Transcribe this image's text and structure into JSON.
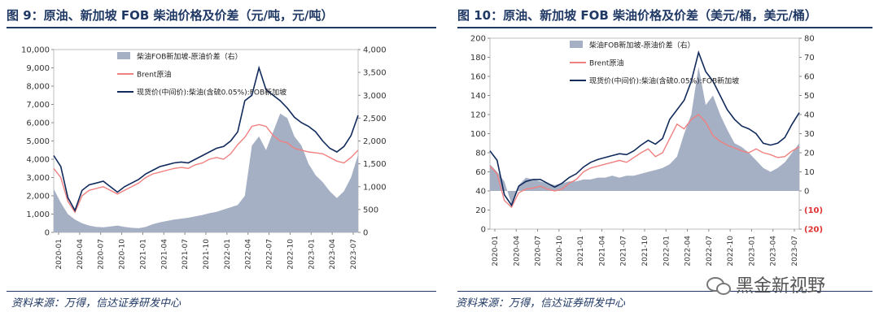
{
  "titles": {
    "left": "图 9：原油、新加坡 FOB 柴油价格及价差（元/吨，元/吨）",
    "right": "图 10：原油、新加坡 FOB 柴油价格及价差（美元/桶，美元/桶）"
  },
  "sources": {
    "left": "资料来源：万得，信达证券研发中心",
    "right": "资料来源：万得，信达证券研发中心"
  },
  "watermark": "黑金新视野",
  "colors": {
    "spread_area": "#a6b0c4",
    "brent": "#f08080",
    "diesel": "#102a5c"
  },
  "chart_data": [
    {
      "type": "line",
      "title": "",
      "xlabel": "",
      "ylabel": "",
      "y_left_range": [
        0,
        10000
      ],
      "y_left_ticks": [
        "0",
        "1,000",
        "2,000",
        "3,000",
        "4,000",
        "5,000",
        "6,000",
        "7,000",
        "8,000",
        "9,000",
        "10,000"
      ],
      "y_right_range": [
        0,
        4000
      ],
      "y_right_ticks": [
        "0",
        "500",
        "1,000",
        "1,500",
        "2,000",
        "2,500",
        "3,000",
        "3,500",
        "4,000"
      ],
      "x_tick_labels": [
        "2020-01",
        "2020-04",
        "2020-07",
        "2020-10",
        "2021-01",
        "2021-04",
        "2021-07",
        "2021-10",
        "2022-01",
        "2022-04",
        "2022-07",
        "2022-10",
        "2023-01",
        "2023-04",
        "2023-07"
      ],
      "grid": false,
      "legend_placement": "top-center",
      "series": [
        {
          "name": "柴油FOB新加坡-原油价差（右）",
          "kind": "area",
          "axis": "right",
          "values": [
            950,
            650,
            400,
            280,
            200,
            150,
            120,
            110,
            130,
            150,
            120,
            100,
            90,
            120,
            180,
            220,
            250,
            280,
            300,
            320,
            350,
            380,
            420,
            450,
            500,
            550,
            600,
            800,
            1900,
            2100,
            1800,
            2200,
            2600,
            2500,
            2100,
            1900,
            1500,
            1250,
            1100,
            900,
            750,
            900,
            1200,
            1700
          ]
        },
        {
          "name": "Brent原油",
          "kind": "line",
          "axis": "left",
          "values": [
            3500,
            3000,
            1700,
            1100,
            2000,
            2300,
            2400,
            2500,
            2300,
            2100,
            2300,
            2500,
            2700,
            3000,
            3200,
            3300,
            3400,
            3500,
            3550,
            3500,
            3700,
            3800,
            4000,
            4100,
            4000,
            4300,
            4800,
            5200,
            5800,
            5900,
            5800,
            5300,
            5000,
            4900,
            4600,
            4500,
            4400,
            4350,
            4300,
            4100,
            3900,
            3800,
            4100,
            4500
          ]
        },
        {
          "name": "现货价(中间价):柴油(含硫0.05%):FOB新加坡",
          "kind": "line",
          "axis": "left",
          "values": [
            4200,
            3600,
            1900,
            1200,
            2300,
            2600,
            2700,
            2800,
            2500,
            2200,
            2500,
            2700,
            2900,
            3200,
            3400,
            3600,
            3700,
            3800,
            3850,
            3800,
            4000,
            4200,
            4400,
            4600,
            4700,
            5000,
            5500,
            7200,
            7500,
            9000,
            7800,
            7500,
            7200,
            6800,
            6300,
            6000,
            5800,
            5500,
            5000,
            4600,
            4400,
            4700,
            5300,
            6400
          ]
        }
      ]
    },
    {
      "type": "line",
      "title": "",
      "xlabel": "",
      "ylabel": "",
      "y_left_range": [
        0,
        200
      ],
      "y_left_ticks": [
        "0",
        "20",
        "40",
        "60",
        "80",
        "100",
        "120",
        "140",
        "160",
        "180",
        "200"
      ],
      "y_right_range": [
        -20,
        80
      ],
      "y_right_ticks": [
        "(20)",
        "(10)",
        "0",
        "10",
        "20",
        "30",
        "40",
        "50",
        "60",
        "70",
        "80"
      ],
      "x_tick_labels": [
        "2020-01",
        "2020-04",
        "2020-07",
        "2020-10",
        "2021-01",
        "2021-04",
        "2021-07",
        "2021-10",
        "2022-01",
        "2022-04",
        "2022-07",
        "2022-10",
        "2023-01",
        "2023-04",
        "2023-07"
      ],
      "grid": false,
      "legend_placement": "top-center",
      "series": [
        {
          "name": "柴油FOB新加坡-原油价差（右）",
          "kind": "area",
          "axis": "right",
          "values": [
            14,
            10,
            5,
            -7,
            3,
            7,
            6,
            5,
            4,
            3,
            4,
            5,
            5,
            6,
            6,
            7,
            7,
            8,
            7,
            8,
            8,
            9,
            10,
            11,
            12,
            14,
            18,
            30,
            40,
            65,
            45,
            50,
            40,
            32,
            25,
            23,
            20,
            16,
            12,
            10,
            12,
            15,
            20,
            25
          ]
        },
        {
          "name": "Brent原油",
          "kind": "line",
          "axis": "left",
          "values": [
            66,
            58,
            30,
            23,
            38,
            42,
            43,
            45,
            42,
            40,
            42,
            48,
            52,
            60,
            64,
            66,
            68,
            70,
            72,
            70,
            75,
            80,
            84,
            76,
            80,
            95,
            110,
            105,
            115,
            120,
            112,
            98,
            92,
            88,
            85,
            82,
            80,
            84,
            80,
            78,
            75,
            76,
            82,
            86
          ]
        },
        {
          "name": "现货价(中间价):柴油(含硫0.05%):FOB新加坡",
          "kind": "line",
          "axis": "left",
          "values": [
            82,
            72,
            36,
            25,
            45,
            50,
            52,
            52,
            48,
            44,
            48,
            54,
            58,
            65,
            70,
            73,
            75,
            77,
            79,
            78,
            82,
            88,
            93,
            89,
            95,
            115,
            125,
            135,
            155,
            185,
            165,
            155,
            140,
            125,
            115,
            108,
            105,
            100,
            90,
            88,
            90,
            96,
            110,
            122
          ]
        }
      ]
    }
  ]
}
